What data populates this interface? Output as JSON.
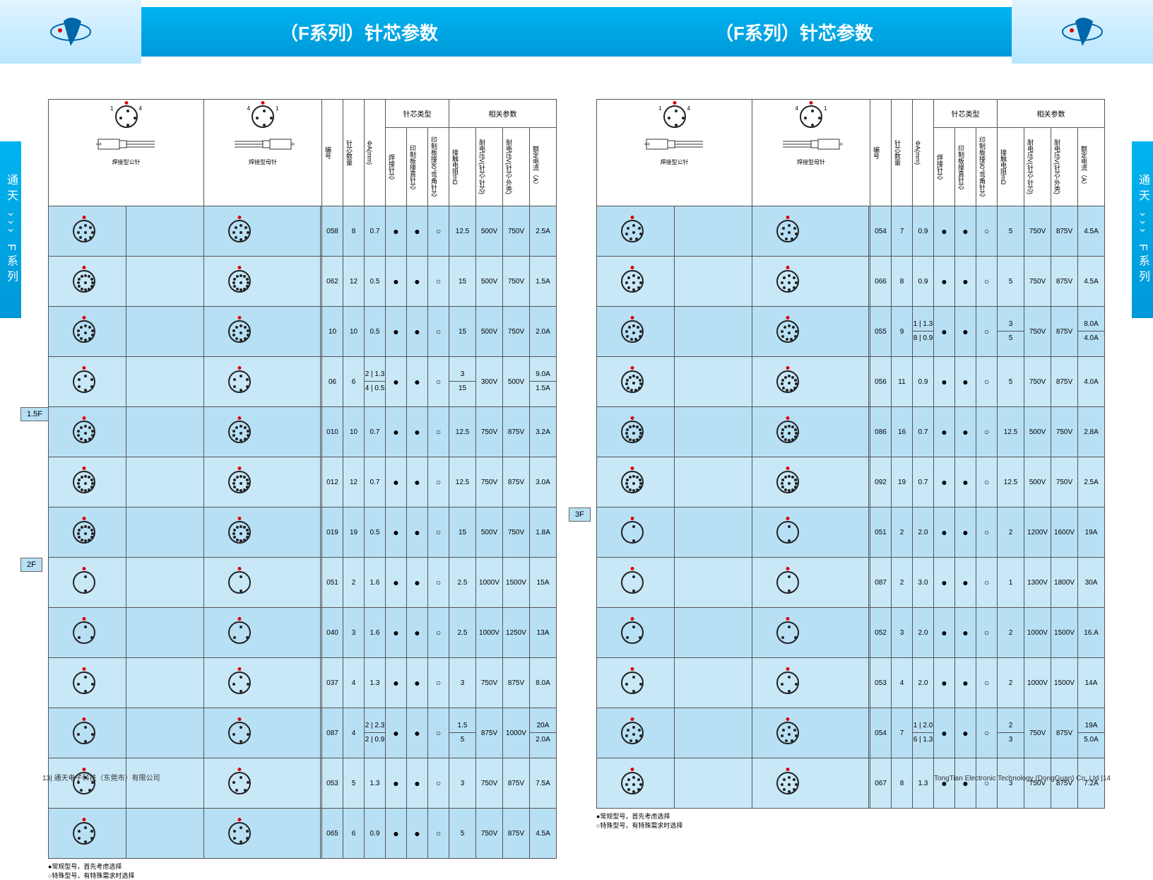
{
  "header": {
    "title_left": "（F系列）针芯参数",
    "title_right": "（F系列）针芯参数"
  },
  "side_tab": "通天 ››› F系列",
  "columns": {
    "male_header": "焊接型公针",
    "female_header": "焊接型母针",
    "model": "编号",
    "pin_count": "针芯数量",
    "diameter": "ΦA(mm)",
    "solder_pin": "焊接针芯",
    "pcb_straight": "印制板接直针芯",
    "pcb_bent": "印制板接90°弯角针芯",
    "resistance": "接触电阻mΩ",
    "voltage_pin_pin": "耐电压V(针芯-针芯)",
    "voltage_pin_shell": "耐电压V(针芯-外壳)",
    "rated_current": "额定电流（A）",
    "type_group": "针芯类型",
    "param_group": "相关参数"
  },
  "legend": {
    "line1": "●常规型号，首先考虑选择",
    "line2": "○特殊型号，有特殊需求时选择"
  },
  "sections": {
    "s15f": "1.5F",
    "s2f": "2F",
    "s3f": "3F"
  },
  "left_table": [
    {
      "model": "058",
      "pins": "8",
      "dia": "0.7",
      "t1": "●",
      "t2": "●",
      "t3": "○",
      "res": "12.5",
      "v1": "500V",
      "v2": "750V",
      "cur": "2.5A"
    },
    {
      "model": "062",
      "pins": "12",
      "dia": "0.5",
      "t1": "●",
      "t2": "●",
      "t3": "○",
      "res": "15",
      "v1": "500V",
      "v2": "750V",
      "cur": "1.5A"
    },
    {
      "model": "10",
      "pins": "10",
      "dia": "0.5",
      "t1": "●",
      "t2": "●",
      "t3": "○",
      "res": "15",
      "v1": "500V",
      "v2": "750V",
      "cur": "2.0A"
    },
    {
      "model": "06",
      "pins": "6",
      "dia": "2/4",
      "dia2": "1.3/0.5",
      "t1": "●",
      "t2": "●",
      "t3": "○",
      "res": "3/15",
      "v1": "300V",
      "v2": "500V",
      "cur": "9.0A/1.5A"
    },
    {
      "model": "010",
      "pins": "10",
      "dia": "0.7",
      "t1": "●",
      "t2": "●",
      "t3": "○",
      "res": "12.5",
      "v1": "750V",
      "v2": "875V",
      "cur": "3.2A",
      "section": "1.5F"
    },
    {
      "model": "012",
      "pins": "12",
      "dia": "0.7",
      "t1": "●",
      "t2": "●",
      "t3": "○",
      "res": "12.5",
      "v1": "750V",
      "v2": "875V",
      "cur": "3.0A"
    },
    {
      "model": "019",
      "pins": "19",
      "dia": "0.5",
      "t1": "●",
      "t2": "●",
      "t3": "○",
      "res": "15",
      "v1": "500V",
      "v2": "750V",
      "cur": "1.8A"
    },
    {
      "model": "051",
      "pins": "2",
      "dia": "1.6",
      "t1": "●",
      "t2": "●",
      "t3": "○",
      "res": "2.5",
      "v1": "1000V",
      "v2": "1500V",
      "cur": "15A",
      "section": "2F"
    },
    {
      "model": "040",
      "pins": "3",
      "dia": "1.6",
      "t1": "●",
      "t2": "●",
      "t3": "○",
      "res": "2.5",
      "v1": "1000V",
      "v2": "1250V",
      "cur": "13A"
    },
    {
      "model": "037",
      "pins": "4",
      "dia": "1.3",
      "t1": "●",
      "t2": "●",
      "t3": "○",
      "res": "3",
      "v1": "750V",
      "v2": "875V",
      "cur": "8.0A"
    },
    {
      "model": "087",
      "pins": "4",
      "dia": "2/2",
      "dia2": "2.3/0.9",
      "t1": "●",
      "t2": "●",
      "t3": "○",
      "res": "1.5/5",
      "v1": "875V",
      "v2": "1000V",
      "cur": "20A/2.0A"
    },
    {
      "model": "053",
      "pins": "5",
      "dia": "1.3",
      "t1": "●",
      "t2": "●",
      "t3": "○",
      "res": "3",
      "v1": "750V",
      "v2": "875V",
      "cur": "7.5A"
    },
    {
      "model": "065",
      "pins": "6",
      "dia": "0.9",
      "t1": "●",
      "t2": "●",
      "t3": "○",
      "res": "5",
      "v1": "750V",
      "v2": "875V",
      "cur": "4.5A"
    }
  ],
  "right_table": [
    {
      "model": "054",
      "pins": "7",
      "dia": "0.9",
      "t1": "●",
      "t2": "●",
      "t3": "○",
      "res": "5",
      "v1": "750V",
      "v2": "875V",
      "cur": "4.5A"
    },
    {
      "model": "066",
      "pins": "8",
      "dia": "0.9",
      "t1": "●",
      "t2": "●",
      "t3": "○",
      "res": "5",
      "v1": "750V",
      "v2": "875V",
      "cur": "4.5A"
    },
    {
      "model": "055",
      "pins": "9",
      "dia": "1/8",
      "dia2": "1.3/0.9",
      "t1": "●",
      "t2": "●",
      "t3": "○",
      "res": "3/5",
      "v1": "750V",
      "v2": "875V",
      "cur": "8.0A/4.0A"
    },
    {
      "model": "056",
      "pins": "11",
      "dia": "0.9",
      "t1": "●",
      "t2": "●",
      "t3": "○",
      "res": "5",
      "v1": "750V",
      "v2": "875V",
      "cur": "4.0A"
    },
    {
      "model": "086",
      "pins": "16",
      "dia": "0.7",
      "t1": "●",
      "t2": "●",
      "t3": "○",
      "res": "12.5",
      "v1": "500V",
      "v2": "750V",
      "cur": "2.8A"
    },
    {
      "model": "092",
      "pins": "19",
      "dia": "0.7",
      "t1": "●",
      "t2": "●",
      "t3": "○",
      "res": "12.5",
      "v1": "500V",
      "v2": "750V",
      "cur": "2.5A"
    },
    {
      "model": "051",
      "pins": "2",
      "dia": "2.0",
      "t1": "●",
      "t2": "●",
      "t3": "○",
      "res": "2",
      "v1": "1200V",
      "v2": "1600V",
      "cur": "19A",
      "section": "3F"
    },
    {
      "model": "087",
      "pins": "2",
      "dia": "3.0",
      "t1": "●",
      "t2": "●",
      "t3": "○",
      "res": "1",
      "v1": "1300V",
      "v2": "1800V",
      "cur": "30A"
    },
    {
      "model": "052",
      "pins": "3",
      "dia": "2.0",
      "t1": "●",
      "t2": "●",
      "t3": "○",
      "res": "2",
      "v1": "1000V",
      "v2": "1500V",
      "cur": "16.A"
    },
    {
      "model": "053",
      "pins": "4",
      "dia": "2.0",
      "t1": "●",
      "t2": "●",
      "t3": "○",
      "res": "2",
      "v1": "1000V",
      "v2": "1500V",
      "cur": "14A"
    },
    {
      "model": "054",
      "pins": "7",
      "dia": "1/6",
      "dia2": "2.0/1.3",
      "t1": "●",
      "t2": "●",
      "t3": "○",
      "res": "2/3",
      "v1": "750V",
      "v2": "875V",
      "cur": "19A/5.0A"
    },
    {
      "model": "067",
      "pins": "8",
      "dia": "1.3",
      "t1": "●",
      "t2": "●",
      "t3": "○",
      "res": "3",
      "v1": "750V",
      "v2": "875V",
      "cur": "7.2A"
    }
  ],
  "footer": {
    "left": "13| 通天电子科技（东莞市）有限公司",
    "right": "TongTian Electronic Technology (DongGuan) Co.,Ltd |14"
  },
  "colors": {
    "header_blue": "#00a8e0",
    "row_bg": "#b8e0f5",
    "accent_red": "#d00000"
  }
}
